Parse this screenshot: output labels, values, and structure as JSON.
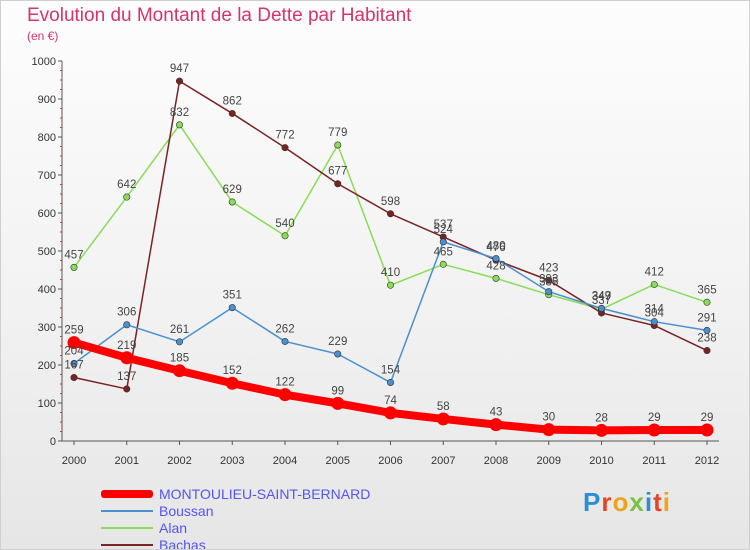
{
  "title": "Evolution du Montant de la Dette par Habitant",
  "subtitle": "(en €)",
  "logo": {
    "letters": [
      "P",
      "r",
      "o",
      "x",
      "i",
      "t",
      "i"
    ],
    "colors": [
      "#2a8fd6",
      "#e6442a",
      "#f0a21a",
      "#79c143",
      "#2a8fd6",
      "#e6442a",
      "#f0a21a"
    ]
  },
  "chart_data": {
    "type": "line",
    "title": "Evolution du Montant de la Dette par Habitant",
    "subtitle": "(en €)",
    "xlabel": "",
    "ylabel": "",
    "x": [
      "2000",
      "2001",
      "2002",
      "2003",
      "2004",
      "2005",
      "2006",
      "2007",
      "2008",
      "2009",
      "2010",
      "2011",
      "2012"
    ],
    "yticks": [
      "0",
      "100",
      "200",
      "300",
      "400",
      "500",
      "600",
      "700",
      "800",
      "900",
      "1000"
    ],
    "ylim": [
      0,
      1000
    ],
    "grid": false,
    "legend_position": "bottom-left",
    "series": [
      {
        "name": "MONTOULIEU-SAINT-BERNARD",
        "color": "#ff0000",
        "values": [
          259,
          219,
          185,
          152,
          122,
          99,
          74,
          58,
          43,
          30,
          28,
          29,
          29
        ]
      },
      {
        "name": "Boussan",
        "color": "#4a90d0",
        "values": [
          204,
          306,
          261,
          351,
          262,
          229,
          154,
          524,
          480,
          393,
          349,
          314,
          291
        ]
      },
      {
        "name": "Alan",
        "color": "#88dd55",
        "values": [
          457,
          642,
          832,
          629,
          540,
          779,
          410,
          465,
          428,
          385,
          347,
          412,
          365
        ]
      },
      {
        "name": "Bachas",
        "color": "#7b2222",
        "values": [
          167,
          137,
          947,
          862,
          772,
          677,
          598,
          537,
          476,
          423,
          337,
          304,
          238
        ]
      }
    ]
  }
}
